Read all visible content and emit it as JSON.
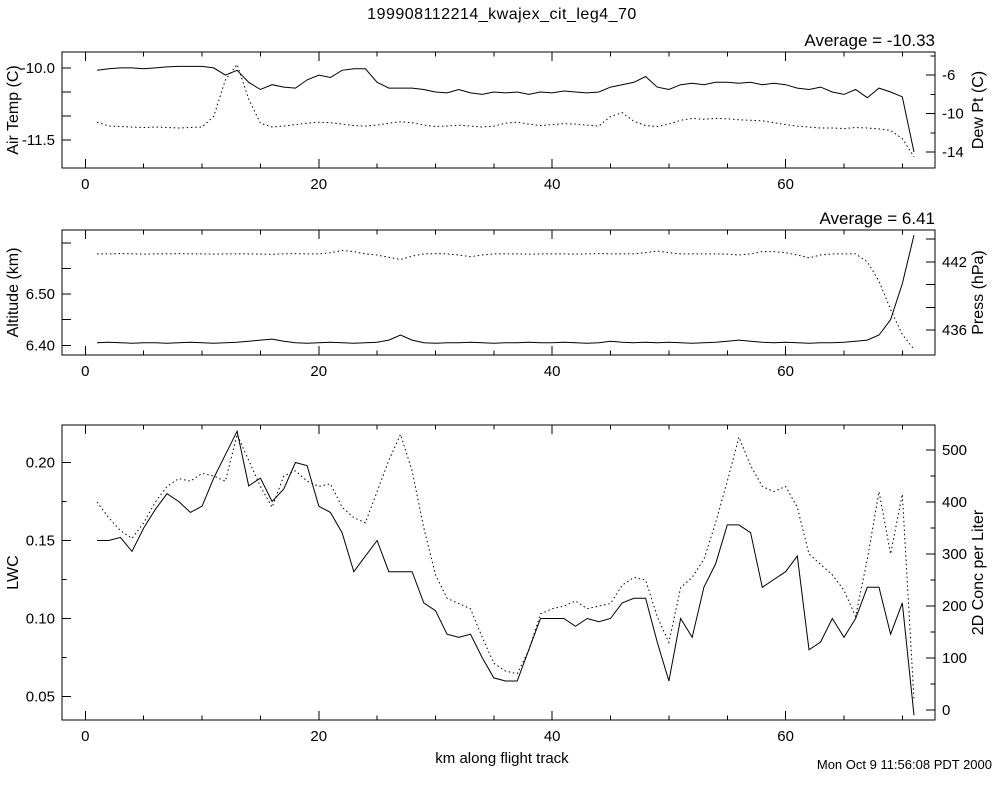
{
  "page": {
    "title": "199908112214_kwajex_cit_leg4_70",
    "x_axis_label": "km along flight track",
    "timestamp": "Mon Oct  9 11:56:08 PDT 2000"
  },
  "chart_data": [
    {
      "type": "line",
      "name": "air-temp-dewpoint",
      "annotation": "Average = -10.33",
      "x_axis": {
        "range": [
          -2,
          72.8
        ],
        "ticks": [
          0,
          20,
          40,
          60
        ],
        "tick_labels": [
          "0",
          "20",
          "40",
          "60"
        ],
        "minor_ticks": [
          5,
          10,
          15,
          25,
          30,
          35,
          45,
          50,
          55,
          65,
          70
        ]
      },
      "left_axis": {
        "title": "Air Temp (C)",
        "range": [
          -12.08,
          -9.67
        ],
        "ticks": [
          -11.5,
          -11.0,
          -10.5,
          -10.0
        ],
        "tick_labels": [
          "-11.5",
          "",
          "",
          "-10.0"
        ],
        "minor_ticks": []
      },
      "right_axis": {
        "title": "Dew Pt (C)",
        "range": [
          -15.66,
          -3.6
        ],
        "ticks": [
          -14,
          -10,
          -6
        ],
        "tick_labels": [
          "-14",
          "-10",
          "-6"
        ],
        "minor_ticks": [
          -12,
          -8,
          -4
        ]
      },
      "x_values": [
        1,
        2,
        3,
        4,
        5,
        6,
        7,
        8,
        9,
        10,
        11,
        12,
        13,
        14,
        15,
        16,
        17,
        18,
        19,
        20,
        21,
        22,
        23,
        24,
        25,
        26,
        27,
        28,
        29,
        30,
        31,
        32,
        33,
        34,
        35,
        36,
        37,
        38,
        39,
        40,
        41,
        42,
        43,
        44,
        45,
        46,
        47,
        48,
        49,
        50,
        51,
        52,
        53,
        54,
        55,
        56,
        57,
        58,
        59,
        60,
        61,
        62,
        63,
        64,
        65,
        66,
        67,
        68,
        69,
        70,
        71
      ],
      "series": [
        {
          "name": "air-temp",
          "axis": "left",
          "style": "solid",
          "y": [
            -10.05,
            -10.02,
            -10.0,
            -10.0,
            -10.02,
            -10.0,
            -9.98,
            -9.97,
            -9.97,
            -9.97,
            -10.0,
            -10.15,
            -10.05,
            -10.3,
            -10.45,
            -10.35,
            -10.4,
            -10.42,
            -10.25,
            -10.15,
            -10.2,
            -10.05,
            -10.02,
            -10.02,
            -10.3,
            -10.42,
            -10.42,
            -10.42,
            -10.45,
            -10.5,
            -10.52,
            -10.45,
            -10.52,
            -10.55,
            -10.5,
            -10.52,
            -10.5,
            -10.55,
            -10.5,
            -10.52,
            -10.48,
            -10.5,
            -10.52,
            -10.5,
            -10.4,
            -10.35,
            -10.3,
            -10.18,
            -10.4,
            -10.45,
            -10.35,
            -10.32,
            -10.35,
            -10.3,
            -10.3,
            -10.32,
            -10.3,
            -10.35,
            -10.32,
            -10.35,
            -10.42,
            -10.45,
            -10.4,
            -10.5,
            -10.55,
            -10.45,
            -10.62,
            -10.42,
            -10.5,
            -10.6,
            -11.75
          ]
        },
        {
          "name": "dew-point",
          "axis": "right",
          "style": "dotted",
          "y": [
            -10.9,
            -11.3,
            -11.35,
            -11.4,
            -11.45,
            -11.4,
            -11.45,
            -11.5,
            -11.45,
            -11.4,
            -10.3,
            -6.5,
            -4.9,
            -8.5,
            -11.0,
            -11.4,
            -11.3,
            -11.15,
            -11.0,
            -10.9,
            -10.95,
            -11.1,
            -11.25,
            -11.3,
            -11.2,
            -11.0,
            -10.85,
            -10.95,
            -11.2,
            -11.35,
            -11.3,
            -11.2,
            -11.3,
            -11.4,
            -11.3,
            -11.0,
            -10.9,
            -11.1,
            -11.25,
            -11.15,
            -11.05,
            -11.1,
            -11.2,
            -11.3,
            -10.3,
            -9.9,
            -10.8,
            -11.25,
            -11.35,
            -11.1,
            -10.7,
            -10.5,
            -10.6,
            -10.5,
            -10.55,
            -10.65,
            -10.7,
            -10.75,
            -10.95,
            -11.15,
            -11.3,
            -11.4,
            -11.5,
            -11.5,
            -11.55,
            -11.45,
            -11.5,
            -11.6,
            -11.75,
            -12.6,
            -14.5
          ]
        }
      ]
    },
    {
      "type": "line",
      "name": "altitude-pressure",
      "annotation": "Average = 6.41",
      "x_axis": {
        "range": [
          -2,
          72.8
        ],
        "ticks": [
          0,
          20,
          40,
          60
        ],
        "tick_labels": [
          "0",
          "20",
          "40",
          "60"
        ],
        "minor_ticks": [
          5,
          10,
          15,
          25,
          30,
          35,
          45,
          50,
          55,
          65,
          70
        ]
      },
      "left_axis": {
        "title": "Altitude (km)",
        "range": [
          6.381,
          6.625
        ],
        "ticks": [
          6.4,
          6.45,
          6.5,
          6.55,
          6.6
        ],
        "tick_labels": [
          "6.40",
          "",
          "6.50",
          "",
          ""
        ],
        "minor_ticks": []
      },
      "right_axis": {
        "title": "Press (hPa)",
        "range": [
          433.8,
          444.8
        ],
        "ticks": [
          436,
          438,
          440,
          442,
          444
        ],
        "tick_labels": [
          "436",
          "",
          "",
          "442",
          ""
        ],
        "minor_ticks": []
      },
      "x_values": [
        1,
        2,
        3,
        4,
        5,
        6,
        7,
        8,
        9,
        10,
        11,
        12,
        13,
        14,
        15,
        16,
        17,
        18,
        19,
        20,
        21,
        22,
        23,
        24,
        25,
        26,
        27,
        28,
        29,
        30,
        31,
        32,
        33,
        34,
        35,
        36,
        37,
        38,
        39,
        40,
        41,
        42,
        43,
        44,
        45,
        46,
        47,
        48,
        49,
        50,
        51,
        52,
        53,
        54,
        55,
        56,
        57,
        58,
        59,
        60,
        61,
        62,
        63,
        64,
        65,
        66,
        67,
        68,
        69,
        70,
        71
      ],
      "series": [
        {
          "name": "altitude",
          "axis": "left",
          "style": "solid",
          "y": [
            6.405,
            6.406,
            6.405,
            6.404,
            6.405,
            6.405,
            6.404,
            6.405,
            6.406,
            6.405,
            6.404,
            6.405,
            6.406,
            6.408,
            6.41,
            6.412,
            6.408,
            6.405,
            6.404,
            6.405,
            6.406,
            6.405,
            6.404,
            6.405,
            6.406,
            6.41,
            6.42,
            6.41,
            6.405,
            6.404,
            6.405,
            6.405,
            6.406,
            6.405,
            6.404,
            6.405,
            6.405,
            6.406,
            6.405,
            6.405,
            6.406,
            6.405,
            6.404,
            6.405,
            6.408,
            6.406,
            6.405,
            6.406,
            6.405,
            6.406,
            6.405,
            6.404,
            6.405,
            6.406,
            6.408,
            6.41,
            6.408,
            6.406,
            6.405,
            6.406,
            6.405,
            6.404,
            6.405,
            6.405,
            6.406,
            6.408,
            6.41,
            6.42,
            6.45,
            6.52,
            6.615
          ]
        },
        {
          "name": "pressure",
          "axis": "right",
          "style": "dotted",
          "y": [
            442.7,
            442.7,
            442.72,
            442.7,
            442.68,
            442.7,
            442.7,
            442.72,
            442.7,
            442.7,
            442.68,
            442.7,
            442.7,
            442.7,
            442.68,
            442.66,
            442.7,
            442.72,
            442.7,
            442.7,
            442.8,
            443.0,
            442.9,
            442.7,
            442.6,
            442.4,
            442.2,
            442.5,
            442.7,
            442.72,
            442.7,
            442.6,
            442.45,
            442.6,
            442.7,
            442.7,
            442.7,
            442.68,
            442.7,
            442.7,
            442.7,
            442.68,
            442.7,
            442.72,
            442.7,
            442.7,
            442.7,
            442.8,
            442.95,
            442.8,
            442.7,
            442.7,
            442.7,
            442.7,
            442.68,
            442.6,
            442.7,
            442.9,
            442.9,
            442.8,
            442.6,
            442.35,
            442.6,
            442.7,
            442.7,
            442.7,
            442.0,
            440.3,
            437.8,
            435.6,
            434.3
          ]
        }
      ]
    },
    {
      "type": "line",
      "name": "lwc-2dconc",
      "annotation": "",
      "x_axis": {
        "range": [
          -2,
          72.8
        ],
        "ticks": [
          0,
          20,
          40,
          60
        ],
        "tick_labels": [
          "0",
          "20",
          "40",
          "60"
        ],
        "minor_ticks": [
          5,
          10,
          15,
          25,
          30,
          35,
          45,
          50,
          55,
          65,
          70
        ]
      },
      "left_axis": {
        "title": "LWC",
        "range": [
          0.035,
          0.224
        ],
        "ticks": [
          0.05,
          0.1,
          0.15,
          0.2
        ],
        "tick_labels": [
          "0.05",
          "0.10",
          "0.15",
          "0.20"
        ],
        "minor_ticks": [
          0.075,
          0.125,
          0.175
        ]
      },
      "right_axis": {
        "title": "2D Conc per Liter",
        "range": [
          -19,
          548
        ],
        "ticks": [
          0,
          100,
          200,
          300,
          400,
          500
        ],
        "tick_labels": [
          "0",
          "100",
          "200",
          "300",
          "400",
          "500"
        ],
        "minor_ticks": [
          50,
          150,
          250,
          350,
          450
        ]
      },
      "x_values": [
        1,
        2,
        3,
        4,
        5,
        6,
        7,
        8,
        9,
        10,
        11,
        12,
        13,
        14,
        15,
        16,
        17,
        18,
        19,
        20,
        21,
        22,
        23,
        24,
        25,
        26,
        27,
        28,
        29,
        30,
        31,
        32,
        33,
        34,
        35,
        36,
        37,
        38,
        39,
        40,
        41,
        42,
        43,
        44,
        45,
        46,
        47,
        48,
        49,
        50,
        51,
        52,
        53,
        54,
        55,
        56,
        57,
        58,
        59,
        60,
        61,
        62,
        63,
        64,
        65,
        66,
        67,
        68,
        69,
        70,
        71
      ],
      "series": [
        {
          "name": "lwc",
          "axis": "left",
          "style": "solid",
          "y": [
            0.15,
            0.15,
            0.152,
            0.143,
            0.158,
            0.17,
            0.18,
            0.175,
            0.168,
            0.172,
            0.19,
            0.205,
            0.22,
            0.185,
            0.19,
            0.175,
            0.183,
            0.2,
            0.198,
            0.172,
            0.168,
            0.155,
            0.13,
            0.14,
            0.15,
            0.13,
            0.13,
            0.13,
            0.11,
            0.105,
            0.09,
            0.088,
            0.09,
            0.075,
            0.062,
            0.06,
            0.06,
            0.08,
            0.1,
            0.1,
            0.1,
            0.095,
            0.1,
            0.098,
            0.1,
            0.11,
            0.113,
            0.113,
            0.085,
            0.06,
            0.1,
            0.088,
            0.12,
            0.135,
            0.16,
            0.16,
            0.155,
            0.12,
            0.125,
            0.13,
            0.14,
            0.08,
            0.085,
            0.1,
            0.088,
            0.1,
            0.12,
            0.12,
            0.09,
            0.11,
            0.038
          ]
        },
        {
          "name": "conc-2d",
          "axis": "right",
          "style": "dotted",
          "y": [
            400,
            370,
            345,
            330,
            360,
            400,
            430,
            445,
            440,
            455,
            450,
            440,
            530,
            480,
            430,
            390,
            450,
            460,
            440,
            430,
            435,
            390,
            370,
            360,
            420,
            480,
            530,
            460,
            350,
            260,
            215,
            205,
            195,
            140,
            90,
            75,
            70,
            115,
            185,
            195,
            200,
            210,
            195,
            200,
            205,
            240,
            255,
            250,
            180,
            130,
            235,
            255,
            290,
            360,
            440,
            525,
            470,
            430,
            420,
            430,
            390,
            300,
            280,
            260,
            230,
            180,
            290,
            420,
            300,
            415,
            20
          ]
        }
      ]
    }
  ]
}
